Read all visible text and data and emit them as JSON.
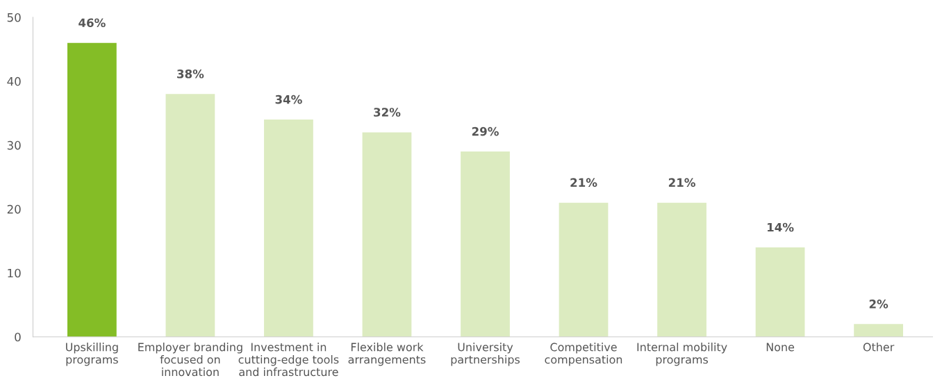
{
  "chart_data": {
    "type": "bar",
    "categories": [
      "Upskilling\nprograms",
      "Employer branding\nfocused on\ninnovation",
      "Investment in\ncutting-edge tools\nand infrastructure",
      "Flexible work\narrangements",
      "University\npartnerships",
      "Competitive\ncompensation",
      "Internal mobility\nprograms",
      "None",
      "Other"
    ],
    "values": [
      46,
      38,
      34,
      32,
      29,
      21,
      21,
      14,
      2
    ],
    "value_labels": [
      "46%",
      "38%",
      "34%",
      "32%",
      "29%",
      "21%",
      "21%",
      "14%",
      "2%"
    ],
    "colors": [
      "#84bd26",
      "#dcebc0",
      "#dcebc0",
      "#dcebc0",
      "#dcebc0",
      "#dcebc0",
      "#dcebc0",
      "#dcebc0",
      "#dcebc0"
    ],
    "ylim": [
      0,
      50
    ],
    "yticks": [
      0,
      10,
      20,
      30,
      40,
      50
    ],
    "grid": false,
    "legend": false
  }
}
